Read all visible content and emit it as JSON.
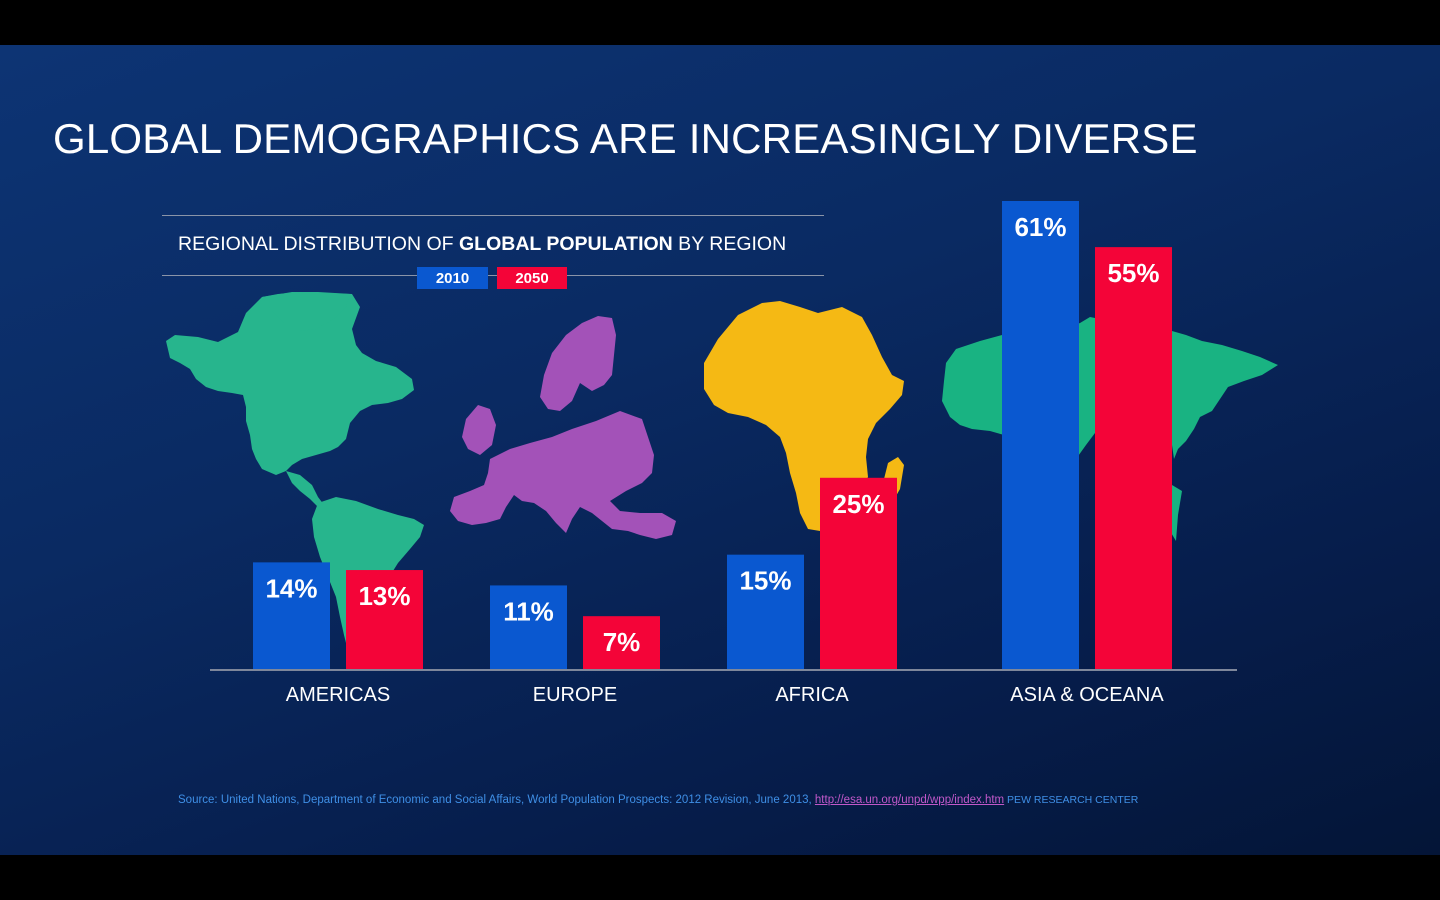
{
  "title": "GLOBAL DEMOGRAPHICS ARE INCREASINGLY DIVERSE",
  "subtitle": {
    "part1": "REGIONAL DISTRIBUTION OF ",
    "bold": "GLOBAL POPULATION",
    "part2": " BY REGION"
  },
  "colors": {
    "series_2010": "#0a58d0",
    "series_2050": "#f40438",
    "americas_map": "#27b58d",
    "europe_map": "#a352b8",
    "africa_map": "#f5b914",
    "asia_map": "#19b382"
  },
  "source": {
    "text": "Source: United Nations, Department of Economic and Social Affairs, World Population Prospects: 2012 Revision, June 2013, ",
    "link": "http://esa.un.org/unpd/wpp/index.htm",
    "org": " PEW RESEARCH CENTER"
  },
  "chart_data": {
    "type": "bar",
    "title": "REGIONAL DISTRIBUTION OF GLOBAL POPULATION BY REGION",
    "categories": [
      "AMERICAS",
      "EUROPE",
      "AFRICA",
      "ASIA & OCEANA"
    ],
    "series": [
      {
        "name": "2010",
        "values": [
          14,
          11,
          15,
          61
        ],
        "labels": [
          "14%",
          "11%",
          "15%",
          "61%"
        ]
      },
      {
        "name": "2050",
        "values": [
          13,
          7,
          25,
          55
        ],
        "labels": [
          "13%",
          "7%",
          "25%",
          "55%"
        ]
      }
    ],
    "unit": "%",
    "ylim": [
      0,
      61
    ],
    "legend": "top",
    "grid": false
  }
}
